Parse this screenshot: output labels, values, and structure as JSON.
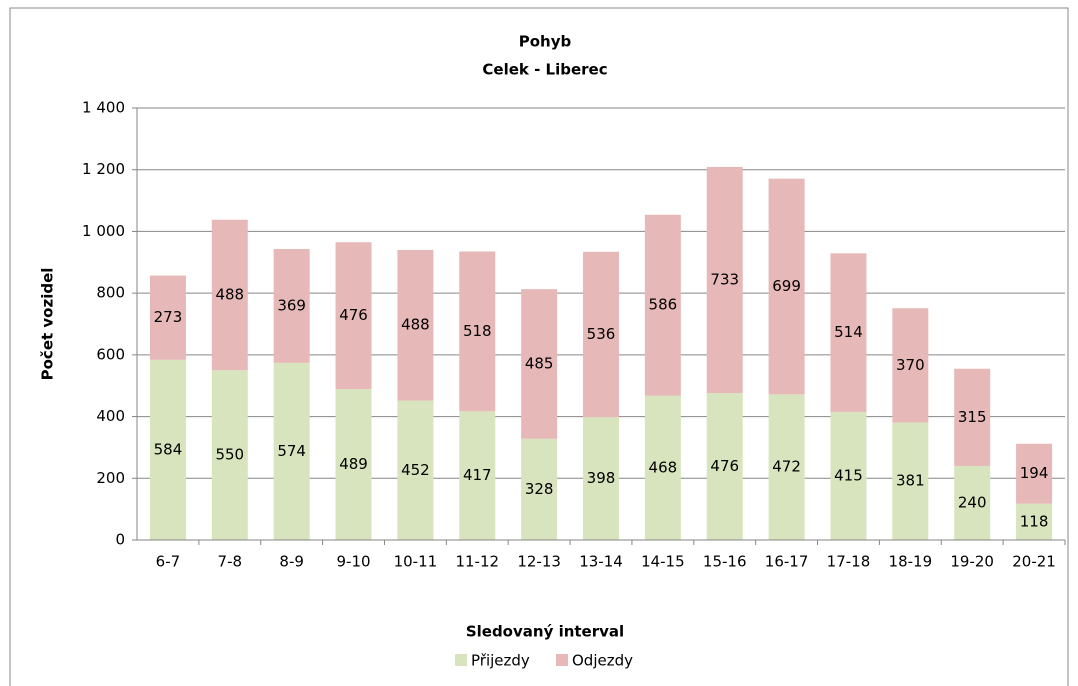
{
  "chart_data": {
    "type": "stacked_bar",
    "title": "Pohyb",
    "subtitle": "Celek - Liberec",
    "x_label": "Sledovaný interval",
    "y_label": "Počet vozidel",
    "categories": [
      "6-7",
      "7-8",
      "8-9",
      "9-10",
      "10-11",
      "11-12",
      "12-13",
      "13-14",
      "14-15",
      "15-16",
      "16-17",
      "17-18",
      "18-19",
      "19-20",
      "20-21"
    ],
    "series": [
      {
        "name": "Přijezdy",
        "color": "#d7e4bd",
        "values": [
          584,
          550,
          574,
          489,
          452,
          417,
          328,
          398,
          468,
          476,
          472,
          415,
          381,
          240,
          118
        ]
      },
      {
        "name": "Odjezdy",
        "color": "#e6b9b8",
        "values": [
          273,
          488,
          369,
          476,
          488,
          518,
          485,
          536,
          586,
          733,
          699,
          514,
          370,
          315,
          194
        ]
      }
    ],
    "ylim": [
      0,
      1400
    ],
    "yticks": [
      0,
      200,
      400,
      600,
      800,
      {
        "value": 1000,
        "label": "1 000"
      },
      {
        "value": 1200,
        "label": "1 200"
      },
      {
        "value": 1400,
        "label": "1 400"
      }
    ],
    "grid": true,
    "legend": "bottom"
  }
}
